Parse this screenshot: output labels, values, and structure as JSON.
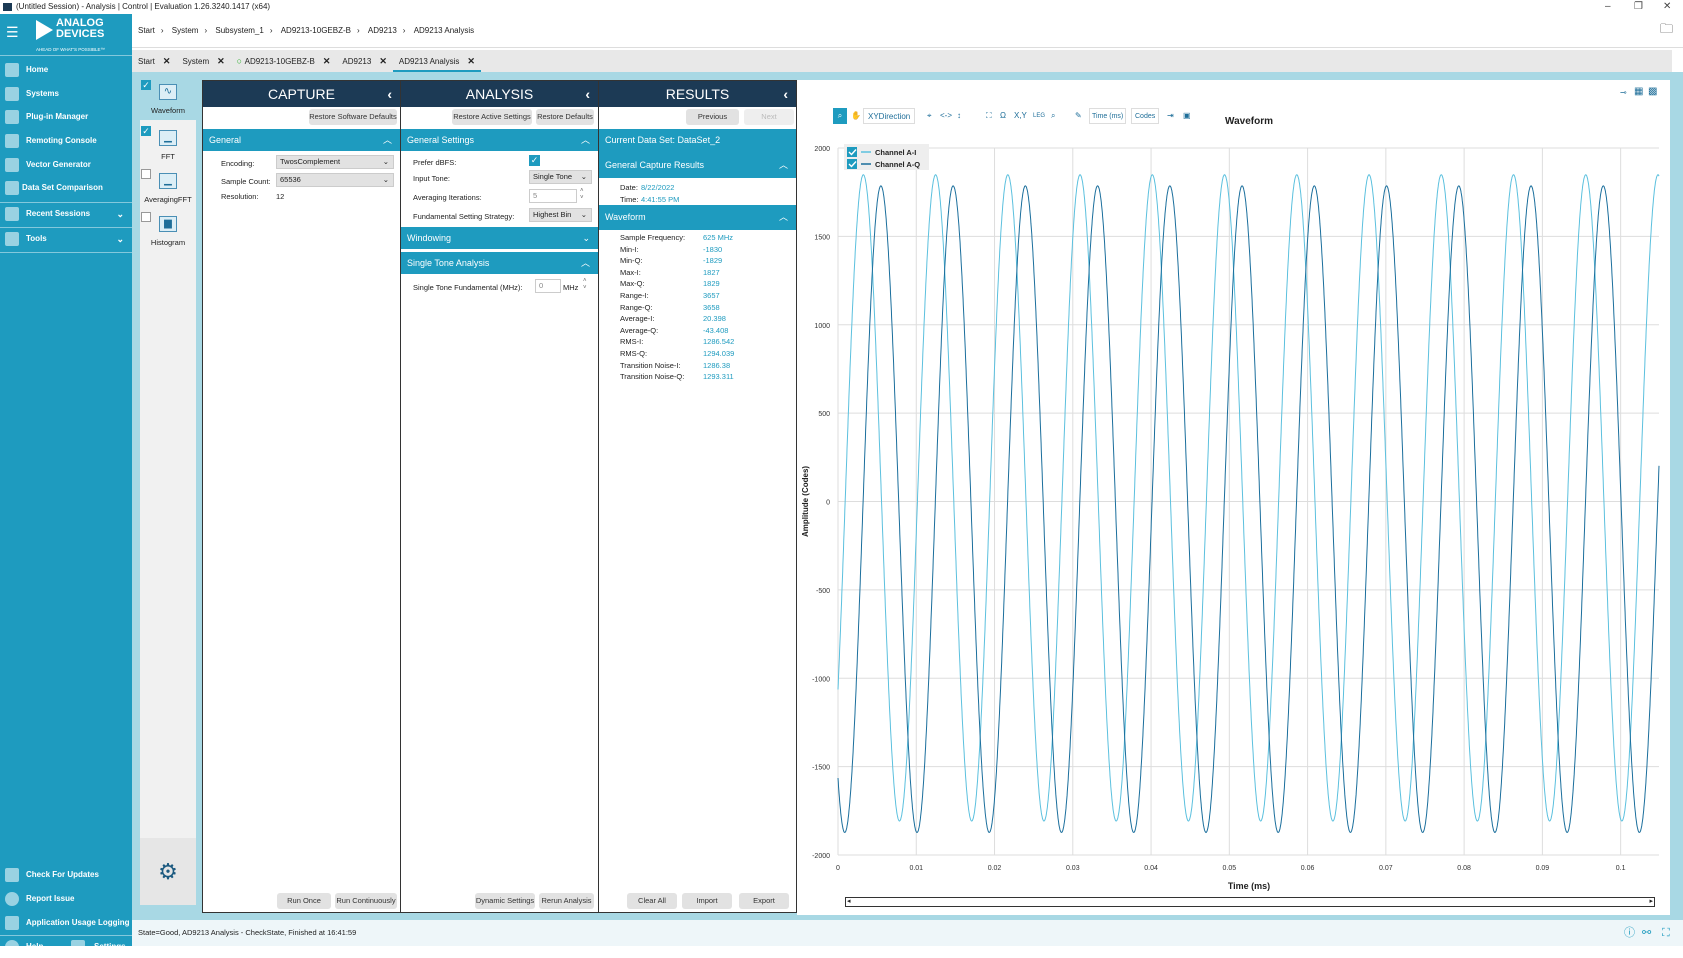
{
  "window": {
    "title": "(Untitled Session) - Analysis | Control | Evaluation 1.26.3240.1417  (x64)",
    "minimize": "–",
    "restore": "❐",
    "close": "✕"
  },
  "sidebar": {
    "logo_line1": "ANALOG",
    "logo_line2": "DEVICES",
    "tagline": "AHEAD OF WHAT'S POSSIBLE™",
    "items": [
      {
        "label": "Home"
      },
      {
        "label": "Systems"
      },
      {
        "label": "Plug-in Manager"
      },
      {
        "label": "Remoting Console"
      },
      {
        "label": "Vector Generator"
      },
      {
        "label": "Data Set Comparison"
      },
      {
        "label": "Recent Sessions"
      },
      {
        "label": "Tools"
      }
    ],
    "bottom": [
      {
        "label": "Check For Updates"
      },
      {
        "label": "Report Issue"
      },
      {
        "label": "Application Usage Logging"
      },
      {
        "label": "Help"
      },
      {
        "label": "Settings"
      }
    ]
  },
  "breadcrumb": [
    "Start",
    "System",
    "Subsystem_1",
    "AD9213-10GEBZ-B",
    "AD9213",
    "AD9213 Analysis"
  ],
  "tabs": [
    {
      "label": "Start"
    },
    {
      "label": "System"
    },
    {
      "label": "AD9213-10GEBZ-B"
    },
    {
      "label": "AD9213"
    },
    {
      "label": "AD9213 Analysis"
    }
  ],
  "views": [
    {
      "label": "Waveform",
      "checked": true
    },
    {
      "label": "FFT",
      "checked": true
    },
    {
      "label": "AveragingFFT",
      "checked": false
    },
    {
      "label": "Histogram",
      "checked": false
    }
  ],
  "capture": {
    "title": "CAPTURE",
    "restore": "Restore Software Defaults",
    "section": "General",
    "encoding_label": "Encoding:",
    "encoding": "TwosComplement",
    "count_label": "Sample Count:",
    "count": "65536",
    "res_label": "Resolution:",
    "res": "12",
    "run_once": "Run Once",
    "run_cont": "Run Continuously"
  },
  "analysis": {
    "title": "ANALYSIS",
    "restore_active": "Restore Active Settings",
    "restore_defaults": "Restore Defaults",
    "general": "General Settings",
    "prefer_label": "Prefer dBFS:",
    "prefer": true,
    "tone_label": "Input Tone:",
    "tone": "Single Tone",
    "avg_label": "Averaging Iterations:",
    "avg": "5",
    "strategy_label": "Fundamental Setting Strategy:",
    "strategy": "Highest Bin",
    "windowing": "Windowing",
    "single": "Single Tone Analysis",
    "fund_label": "Single Tone Fundamental (MHz):",
    "fund": "0",
    "fund_unit": "MHz",
    "dynamic": "Dynamic Settings",
    "rerun": "Rerun Analysis"
  },
  "results": {
    "title": "RESULTS",
    "previous": "Previous",
    "next": "Next",
    "dataset_label": "Current Data Set:",
    "dataset": "DataSet_2",
    "capture_section": "General Capture Results",
    "date_label": "Date:",
    "date": "8/22/2022",
    "time_label": "Time:",
    "time": "4:41:55 PM",
    "waveform_section": "Waveform",
    "rows": [
      {
        "k": "Sample Frequency:",
        "v": "625 MHz"
      },
      {
        "k": "Min-I:",
        "v": "-1830"
      },
      {
        "k": "Min-Q:",
        "v": "-1829"
      },
      {
        "k": "Max-I:",
        "v": "1827"
      },
      {
        "k": "Max-Q:",
        "v": "1829"
      },
      {
        "k": "Range-I:",
        "v": "3657"
      },
      {
        "k": "Range-Q:",
        "v": "3658"
      },
      {
        "k": "Average-I:",
        "v": "20.398"
      },
      {
        "k": "Average-Q:",
        "v": "-43.408"
      },
      {
        "k": "RMS-I:",
        "v": "1286.542"
      },
      {
        "k": "RMS-Q:",
        "v": "1294.039"
      },
      {
        "k": "Transition Noise-I:",
        "v": "1286.38"
      },
      {
        "k": "Transition Noise-Q:",
        "v": "1293.311"
      }
    ],
    "clear": "Clear All",
    "import": "Import",
    "export": "Export"
  },
  "toolbar": {
    "direction": "XYDirection",
    "xy": "X,Y",
    "leg": "LEG",
    "xunit": "Time (ms)",
    "yunit": "Codes",
    "pan": "<->"
  },
  "chart_data": {
    "type": "line",
    "title": "Waveform",
    "xlabel": "Time (ms)",
    "ylabel": "Amplitude (Codes)",
    "xlim": [
      0,
      0.1049
    ],
    "ylim": [
      -2000,
      2000
    ],
    "grid": true,
    "legend": "top-left",
    "xticks": [
      "0",
      "0.01",
      "0.02",
      "0.03",
      "0.04",
      "0.05",
      "0.06",
      "0.07",
      "0.08",
      "0.09",
      "0.1"
    ],
    "yticks": [
      "2000",
      "1500",
      "1000",
      "500",
      "0",
      "-500",
      "-1000",
      "-1500",
      "-2000"
    ],
    "series": [
      {
        "name": "Channel A-I",
        "color": "#5bc0de",
        "amplitude": 1828,
        "offset": 20.4,
        "period_ms": 0.00923,
        "first_peak_ms": 0.00324
      },
      {
        "name": "Channel A-Q",
        "color": "#1a6e9c",
        "amplitude": 1829,
        "offset": -43.4,
        "period_ms": 0.00923,
        "first_peak_ms": 0.00548
      }
    ]
  },
  "status": "State=Good, AD9213 Analysis - CheckState, Finished at 16:41:59"
}
